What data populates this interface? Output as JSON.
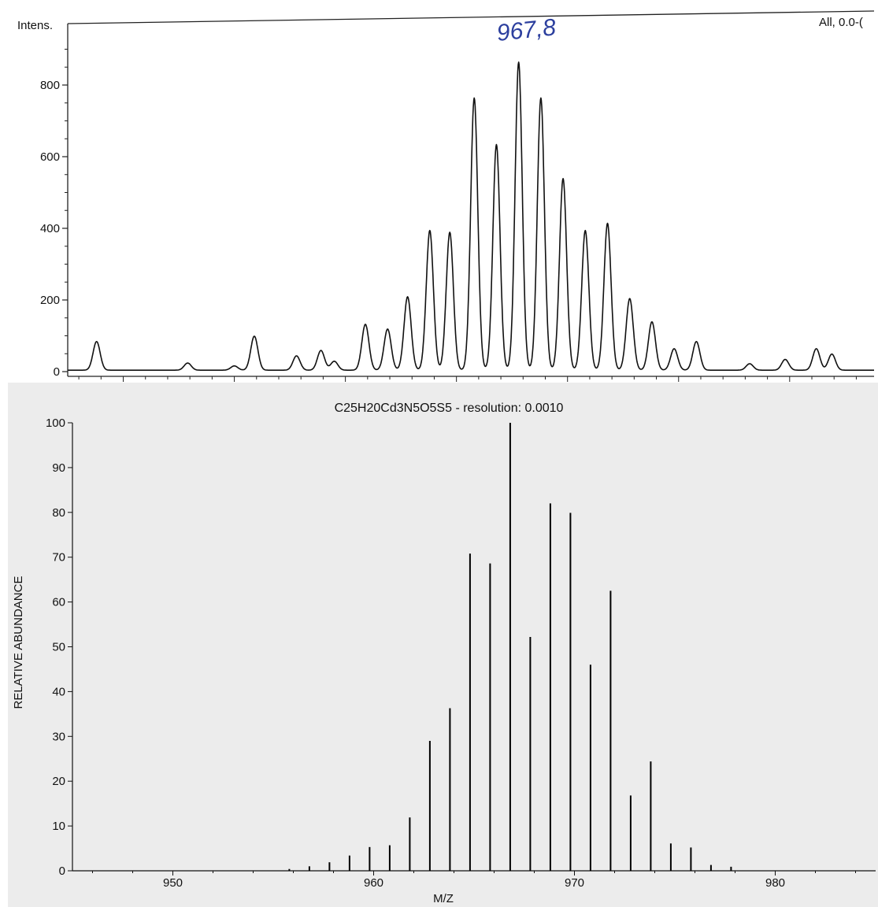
{
  "chart_data": [
    {
      "type": "line",
      "ylabel": "Intens.",
      "corner_label": "All, 0.0-(",
      "annotation": "967,8",
      "xlim": [
        947.5,
        983.8
      ],
      "ylim": [
        0,
        950
      ],
      "x_ticks": [
        950,
        955,
        960,
        965,
        970,
        975,
        980
      ],
      "y_ticks": [
        0,
        200,
        400,
        600,
        800
      ],
      "grid": false,
      "line_color": "#111111",
      "annotation_color": "#2c3f9e",
      "peaks": [
        {
          "x": 948.8,
          "y": 80
        },
        {
          "x": 952.9,
          "y": 20
        },
        {
          "x": 955.0,
          "y": 12
        },
        {
          "x": 955.9,
          "y": 95
        },
        {
          "x": 957.8,
          "y": 40
        },
        {
          "x": 958.9,
          "y": 55
        },
        {
          "x": 959.5,
          "y": 25
        },
        {
          "x": 960.9,
          "y": 128
        },
        {
          "x": 961.9,
          "y": 115
        },
        {
          "x": 962.8,
          "y": 205
        },
        {
          "x": 963.8,
          "y": 390
        },
        {
          "x": 964.7,
          "y": 385
        },
        {
          "x": 965.8,
          "y": 760
        },
        {
          "x": 966.8,
          "y": 630
        },
        {
          "x": 967.8,
          "y": 860
        },
        {
          "x": 968.8,
          "y": 760
        },
        {
          "x": 969.8,
          "y": 535
        },
        {
          "x": 970.8,
          "y": 390
        },
        {
          "x": 971.8,
          "y": 410
        },
        {
          "x": 972.8,
          "y": 200
        },
        {
          "x": 973.8,
          "y": 135
        },
        {
          "x": 974.8,
          "y": 60
        },
        {
          "x": 975.8,
          "y": 80
        },
        {
          "x": 978.2,
          "y": 18
        },
        {
          "x": 979.8,
          "y": 30
        },
        {
          "x": 981.2,
          "y": 60
        },
        {
          "x": 981.9,
          "y": 45
        }
      ]
    },
    {
      "type": "bar",
      "title": "C25H20Cd3N5O5S5 - resolution: 0.0010",
      "xlabel": "M/Z",
      "ylabel": "RELATIVE ABUNDANCE",
      "xlim": [
        945,
        985
      ],
      "ylim": [
        0,
        100
      ],
      "x_ticks": [
        950,
        960,
        970,
        980
      ],
      "y_ticks": [
        0,
        10,
        20,
        30,
        40,
        50,
        60,
        70,
        80,
        90,
        100
      ],
      "grid": false,
      "background": "#ececec",
      "x": [
        955.8,
        956.8,
        957.8,
        958.8,
        959.8,
        960.8,
        961.8,
        962.8,
        963.8,
        964.8,
        965.8,
        966.8,
        967.8,
        968.8,
        969.8,
        970.8,
        971.8,
        972.8,
        973.8,
        974.8,
        975.8,
        976.8,
        977.8
      ],
      "values": [
        0.4,
        1.0,
        1.9,
        3.4,
        5.3,
        5.7,
        11.9,
        29.0,
        36.3,
        70.8,
        68.6,
        100,
        52.2,
        82.0,
        79.9,
        46.0,
        62.5,
        16.8,
        24.4,
        6.1,
        5.2,
        1.3,
        0.9
      ]
    }
  ]
}
